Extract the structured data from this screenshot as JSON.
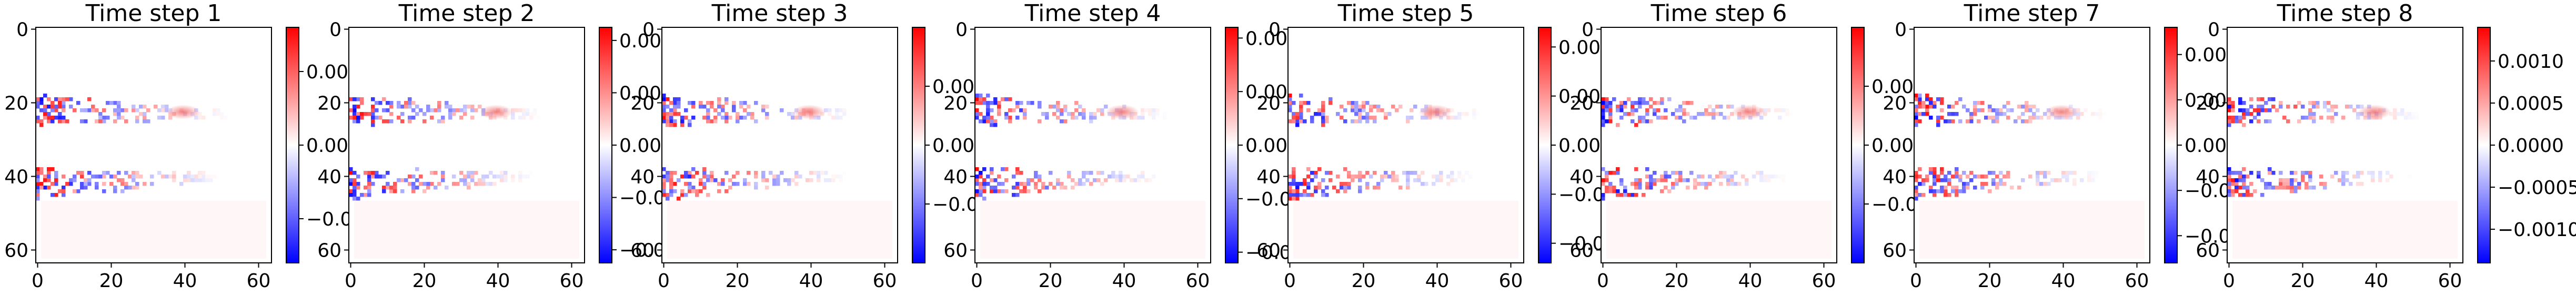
{
  "chart_data": [
    {
      "type": "heatmap",
      "title": "Time step 1",
      "x_ticks": [
        "0",
        "20",
        "40",
        "60"
      ],
      "y_ticks": [
        "0",
        "20",
        "40",
        "60"
      ],
      "grid_size": [
        64,
        64
      ],
      "colormap": "bwr",
      "colorbar": {
        "vmin": -0.0016,
        "vmax": 0.0016,
        "ticks": [
          0.001,
          0.0,
          -0.001
        ],
        "tick_labels": [
          "0.001",
          "0.000",
          "−0.001"
        ]
      }
    },
    {
      "type": "heatmap",
      "title": "Time step 2",
      "x_ticks": [
        "0",
        "20",
        "40",
        "60"
      ],
      "y_ticks": [
        "0",
        "20",
        "40",
        "60"
      ],
      "grid_size": [
        64,
        64
      ],
      "colormap": "bwr",
      "colorbar": {
        "vmin": -0.00045,
        "vmax": 0.00045,
        "ticks": [
          0.0004,
          0.0002,
          0.0,
          -0.0002,
          -0.0004
        ],
        "tick_labels": [
          "0.0004",
          "0.0002",
          "0.0000",
          "−0.0002",
          "−0.0004"
        ]
      }
    },
    {
      "type": "heatmap",
      "title": "Time step 3",
      "x_ticks": [
        "0",
        "20",
        "40",
        "60"
      ],
      "y_ticks": [
        "0",
        "20",
        "40",
        "60"
      ],
      "grid_size": [
        64,
        64
      ],
      "colormap": "bwr",
      "colorbar": {
        "vmin": -0.001,
        "vmax": 0.001,
        "ticks": [
          0.0005,
          0.0,
          -0.0005
        ],
        "tick_labels": [
          "0.0005",
          "0.0000",
          "−0.0005"
        ]
      }
    },
    {
      "type": "heatmap",
      "title": "Time step 4",
      "x_ticks": [
        "0",
        "20",
        "40",
        "60"
      ],
      "y_ticks": [
        "0",
        "20",
        "40",
        "60"
      ],
      "grid_size": [
        64,
        64
      ],
      "colormap": "bwr",
      "colorbar": {
        "vmin": -0.0011,
        "vmax": 0.0011,
        "ticks": [
          0.001,
          0.0005,
          0.0,
          -0.0005,
          -0.001
        ],
        "tick_labels": [
          "0.0010",
          "0.0005",
          "0.0000",
          "−0.0005",
          "−0.0010"
        ]
      }
    },
    {
      "type": "heatmap",
      "title": "Time step 5",
      "x_ticks": [
        "0",
        "20",
        "40",
        "60"
      ],
      "y_ticks": [
        "0",
        "20",
        "40",
        "60"
      ],
      "grid_size": [
        64,
        64
      ],
      "colormap": "bwr",
      "colorbar": {
        "vmin": -0.00048,
        "vmax": 0.00048,
        "ticks": [
          0.0004,
          0.0002,
          0.0,
          -0.0002,
          -0.0004
        ],
        "tick_labels": [
          "0.0004",
          "0.0002",
          "0.0000",
          "−0.0002",
          "−0.0004"
        ]
      }
    },
    {
      "type": "heatmap",
      "title": "Time step 6",
      "x_ticks": [
        "0",
        "20",
        "40",
        "60"
      ],
      "y_ticks": [
        "0",
        "20",
        "40",
        "60"
      ],
      "grid_size": [
        64,
        64
      ],
      "colormap": "bwr",
      "colorbar": {
        "vmin": -0.001,
        "vmax": 0.001,
        "ticks": [
          0.0005,
          0.0,
          -0.0005
        ],
        "tick_labels": [
          "0.0005",
          "0.0000",
          "−0.0005"
        ]
      }
    },
    {
      "type": "heatmap",
      "title": "Time step 7",
      "x_ticks": [
        "0",
        "20",
        "40",
        "60"
      ],
      "y_ticks": [
        "0",
        "20",
        "40",
        "60"
      ],
      "grid_size": [
        64,
        64
      ],
      "colormap": "bwr",
      "colorbar": {
        "vmin": -0.00065,
        "vmax": 0.00065,
        "ticks": [
          0.0005,
          0.00025,
          0.0,
          -0.00025,
          -0.0005
        ],
        "tick_labels": [
          "0.00050",
          "0.00025",
          "0.00000",
          "−0.00025",
          "−0.00050"
        ]
      }
    },
    {
      "type": "heatmap",
      "title": "Time step 8",
      "x_ticks": [
        "0",
        "20",
        "40",
        "60"
      ],
      "y_ticks": [
        "0",
        "20",
        "40",
        "60"
      ],
      "grid_size": [
        64,
        64
      ],
      "colormap": "bwr",
      "colorbar": {
        "vmin": -0.0014,
        "vmax": 0.0014,
        "ticks": [
          0.001,
          0.0005,
          0.0,
          -0.0005,
          -0.001
        ],
        "tick_labels": [
          "0.0010",
          "0.0005",
          "0.0000",
          "−0.0005",
          "−0.0010"
        ]
      }
    }
  ]
}
